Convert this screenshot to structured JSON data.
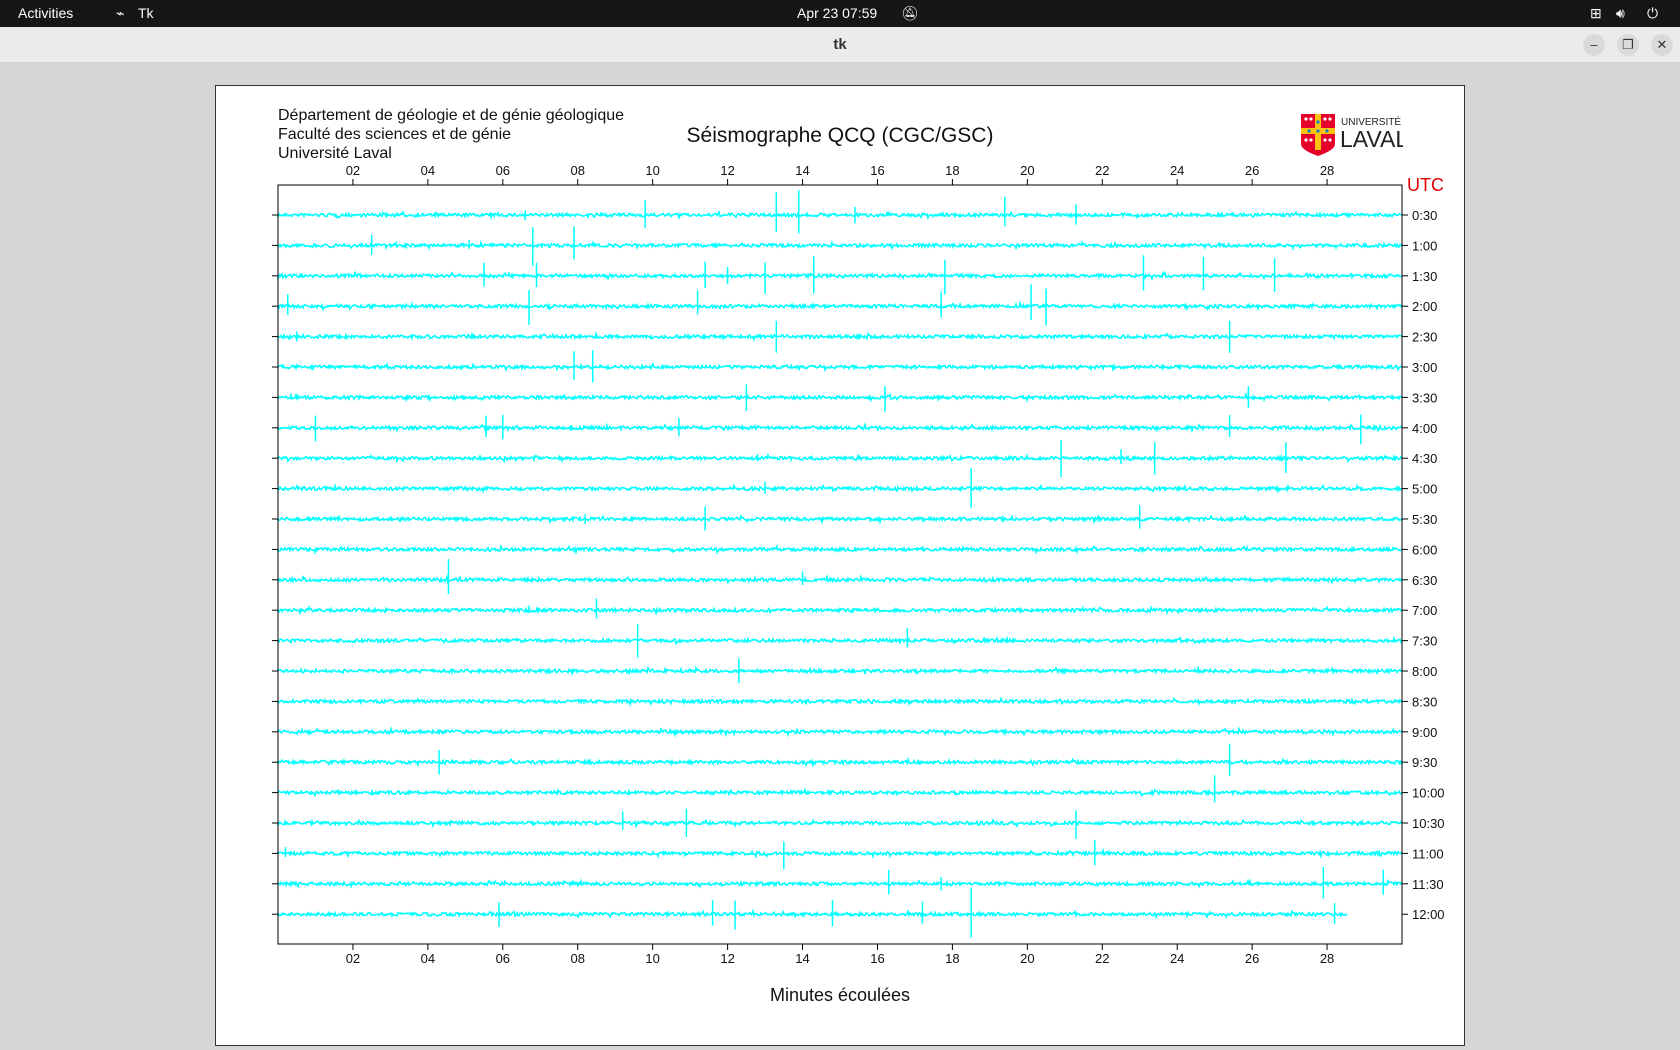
{
  "topbar": {
    "activities": "Activities",
    "app": "Tk",
    "datetime": "Apr 23  07:59"
  },
  "window": {
    "title": "tk"
  },
  "header": {
    "lines": [
      "Département de géologie et de génie géologique",
      "Faculté des sciences et de génie",
      "Université Laval"
    ],
    "title": "Séismographe QCQ (CGC/GSC)",
    "logo_text": [
      "UNIVERSITÉ",
      "LAVAL"
    ]
  },
  "chart_data": {
    "type": "line",
    "xlabel": "Minutes écoulées",
    "xlim": [
      0,
      30
    ],
    "xticks": [
      "02",
      "04",
      "06",
      "08",
      "10",
      "12",
      "14",
      "16",
      "18",
      "20",
      "22",
      "24",
      "26",
      "28"
    ],
    "ylabel_right": "UTC",
    "rows": [
      "0:30",
      "1:00",
      "1:30",
      "2:00",
      "2:30",
      "3:00",
      "3:30",
      "4:00",
      "4:30",
      "5:00",
      "5:30",
      "6:00",
      "6:30",
      "7:00",
      "7:30",
      "8:00",
      "8:30",
      "9:00",
      "9:30",
      "10:00",
      "10:30",
      "11:00",
      "11:30",
      "12:00"
    ],
    "last_row_end_minute": 28.55,
    "trace_color": "#00ffff",
    "events": [
      [
        0,
        9.8,
        15
      ],
      [
        0,
        13.3,
        22
      ],
      [
        0,
        13.9,
        25
      ],
      [
        0,
        15.4,
        10
      ],
      [
        0,
        19.4,
        20
      ],
      [
        0,
        21.3,
        12
      ],
      [
        0,
        6.6,
        5
      ],
      [
        1,
        2.5,
        10
      ],
      [
        1,
        6.8,
        22
      ],
      [
        1,
        7.9,
        18
      ],
      [
        1,
        5.1,
        5
      ],
      [
        2,
        5.5,
        16
      ],
      [
        2,
        6.9,
        15
      ],
      [
        2,
        11.4,
        16
      ],
      [
        2,
        12.0,
        10
      ],
      [
        2,
        13.0,
        17
      ],
      [
        2,
        14.3,
        22
      ],
      [
        2,
        17.8,
        18
      ],
      [
        2,
        23.1,
        20
      ],
      [
        2,
        24.7,
        25
      ],
      [
        2,
        26.6,
        18
      ],
      [
        3,
        0.26,
        12
      ],
      [
        3,
        6.7,
        18
      ],
      [
        3,
        11.2,
        15
      ],
      [
        3,
        17.7,
        16
      ],
      [
        3,
        20.1,
        22
      ],
      [
        3,
        20.5,
        20
      ],
      [
        4,
        13.3,
        18
      ],
      [
        4,
        25.4,
        16
      ],
      [
        4,
        0.5,
        6
      ],
      [
        5,
        7.9,
        17
      ],
      [
        5,
        8.4,
        16
      ],
      [
        6,
        12.5,
        13
      ],
      [
        6,
        16.2,
        15
      ],
      [
        6,
        25.9,
        13
      ],
      [
        7,
        1.0,
        13
      ],
      [
        7,
        5.55,
        14
      ],
      [
        7,
        6.0,
        16
      ],
      [
        7,
        10.7,
        10
      ],
      [
        7,
        25.4,
        13
      ],
      [
        7,
        28.9,
        17
      ],
      [
        8,
        20.9,
        18
      ],
      [
        8,
        22.5,
        10
      ],
      [
        8,
        23.4,
        16
      ],
      [
        8,
        26.9,
        18
      ],
      [
        8,
        12.8,
        5
      ],
      [
        9,
        18.5,
        25
      ],
      [
        9,
        13.0,
        7
      ],
      [
        10,
        11.4,
        13
      ],
      [
        10,
        23.0,
        13
      ],
      [
        10,
        8.2,
        5
      ],
      [
        12,
        4.55,
        20
      ],
      [
        12,
        14.0,
        8
      ],
      [
        13,
        8.5,
        14
      ],
      [
        13,
        6.7,
        5
      ],
      [
        14,
        9.6,
        20
      ],
      [
        14,
        16.8,
        12
      ],
      [
        15,
        12.3,
        13
      ],
      [
        18,
        4.3,
        13
      ],
      [
        18,
        25.4,
        18
      ],
      [
        19,
        25.0,
        18
      ],
      [
        20,
        9.2,
        11
      ],
      [
        20,
        10.9,
        18
      ],
      [
        20,
        21.3,
        15
      ],
      [
        21,
        13.5,
        15
      ],
      [
        21,
        21.8,
        18
      ],
      [
        21,
        0.2,
        6
      ],
      [
        22,
        16.3,
        16
      ],
      [
        22,
        17.7,
        8
      ],
      [
        22,
        27.9,
        18
      ],
      [
        22,
        29.5,
        18
      ],
      [
        23,
        5.9,
        14
      ],
      [
        23,
        11.6,
        16
      ],
      [
        23,
        12.2,
        16
      ],
      [
        23,
        14.8,
        16
      ],
      [
        23,
        17.2,
        15
      ],
      [
        23,
        18.5,
        25
      ],
      [
        23,
        28.2,
        12
      ]
    ]
  }
}
